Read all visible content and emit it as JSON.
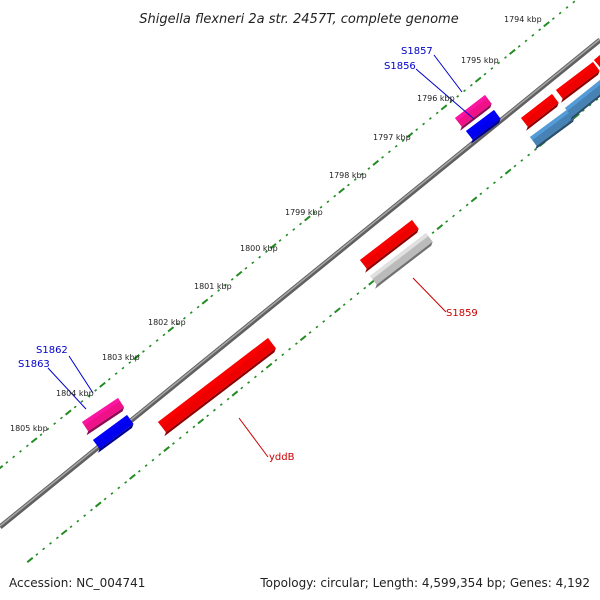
{
  "title": "Shigella flexneri 2a str. 2457T, complete genome",
  "footer": {
    "accession": "Accession: NC_004741",
    "topology": "Topology: circular; Length: 4,599,354 bp; Genes: 4,192"
  },
  "ticks": [
    "1794 kbp",
    "1795 kbp",
    "1796 kbp",
    "1797 kbp",
    "1798 kbp",
    "1799 kbp",
    "1800 kbp",
    "1801 kbp",
    "1802 kbp",
    "1803 kbp",
    "1804 kbp",
    "1805 kbp"
  ],
  "gene_labels": {
    "s1857": "S1857",
    "s1856": "S1856",
    "s1859": "S1859",
    "s1862": "S1862",
    "s1863": "S1863",
    "yddB": "yddB"
  },
  "colors": {
    "cds_red": "#ee0000",
    "cds_pink": "#ee1188",
    "cds_blue": "#0000ee",
    "cds_steel": "#4682b4",
    "pseudogene_grey": "#bbbbbb",
    "backbone": "#808080",
    "tick_green": "#228b22",
    "label_blue": "#0000cc",
    "label_red": "#cc0000"
  }
}
